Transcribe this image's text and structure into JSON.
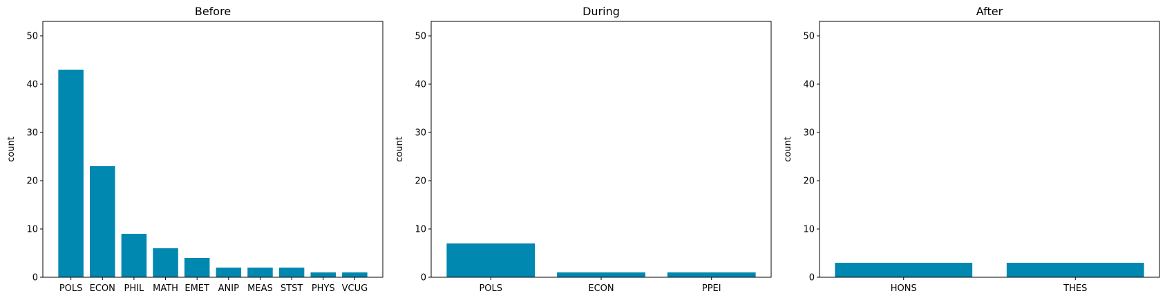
{
  "figure": {
    "bar_color": "#0088b0",
    "axis_color": "#000000",
    "background": "#ffffff"
  },
  "chart_data": [
    {
      "type": "bar",
      "title": "Before",
      "xlabel": "",
      "ylabel": "count",
      "ylim": [
        0,
        53
      ],
      "yticks": [
        0,
        10,
        20,
        30,
        40,
        50
      ],
      "grid": false,
      "categories": [
        "POLS",
        "ECON",
        "PHIL",
        "MATH",
        "EMET",
        "ANIP",
        "MEAS",
        "STST",
        "PHYS",
        "VCUG"
      ],
      "values": [
        43,
        23,
        9,
        6,
        4,
        2,
        2,
        2,
        1,
        1
      ]
    },
    {
      "type": "bar",
      "title": "During",
      "xlabel": "",
      "ylabel": "count",
      "ylim": [
        0,
        53
      ],
      "yticks": [
        0,
        10,
        20,
        30,
        40,
        50
      ],
      "grid": false,
      "categories": [
        "POLS",
        "ECON",
        "PPEI"
      ],
      "values": [
        7,
        1,
        1
      ]
    },
    {
      "type": "bar",
      "title": "After",
      "xlabel": "",
      "ylabel": "count",
      "ylim": [
        0,
        53
      ],
      "yticks": [
        0,
        10,
        20,
        30,
        40,
        50
      ],
      "grid": false,
      "categories": [
        "HONS",
        "THES"
      ],
      "values": [
        3,
        3
      ]
    }
  ]
}
